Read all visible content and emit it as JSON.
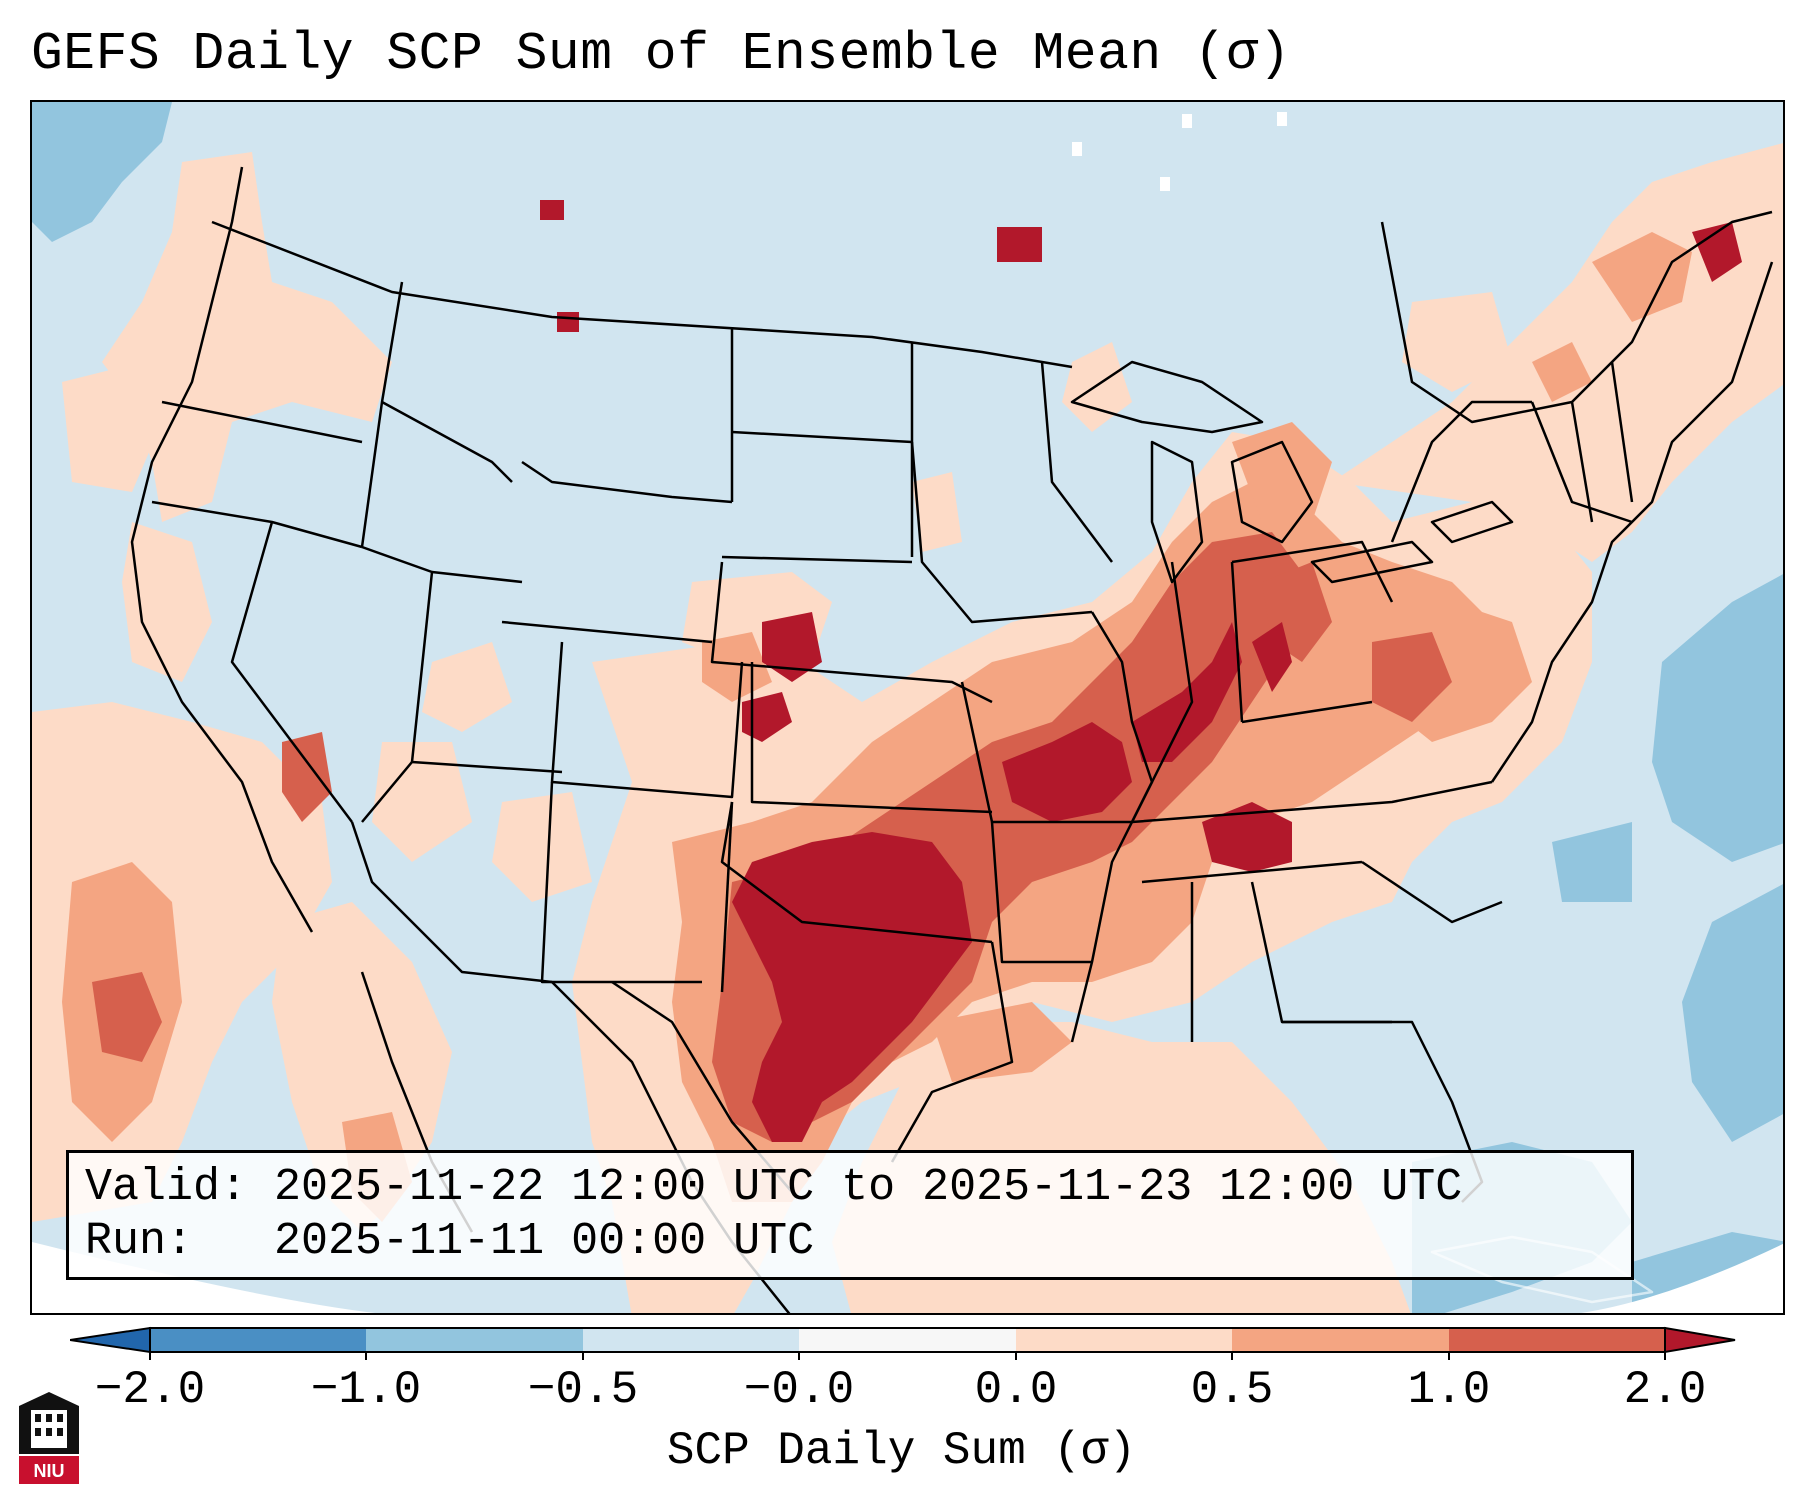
{
  "title": "GEFS Daily SCP Sum of Ensemble Mean (σ)",
  "info": {
    "valid_label": "Valid:",
    "valid_value": "2025-11-22 12:00 UTC to 2025-11-23 12:00 UTC",
    "run_label": "Run:",
    "run_value": "2025-11-11 00:00 UTC"
  },
  "colorbar": {
    "label": "SCP Daily Sum (σ)",
    "ticks": [
      "−2.0",
      "−1.0",
      "−0.5",
      "−0.0",
      "0.0",
      "0.5",
      "1.0",
      "2.0"
    ],
    "colors": [
      "#4a8fc4",
      "#92c5de",
      "#d1e5f0",
      "#f7f7f7",
      "#fddbc7",
      "#f4a582",
      "#d6604d",
      "#b2182b"
    ],
    "extend_min_color": "#2166ac",
    "extend_max_color": "#b2182b"
  },
  "map": {
    "background_color": "#d1e5f0",
    "description_regions": [
      "Texas and Oklahoma",
      "Arkansas, Missouri, Tennessee",
      "Ohio Valley",
      "Gulf of Mexico",
      "West Coast",
      "Northeast"
    ]
  },
  "logo": {
    "text": "NIU"
  }
}
